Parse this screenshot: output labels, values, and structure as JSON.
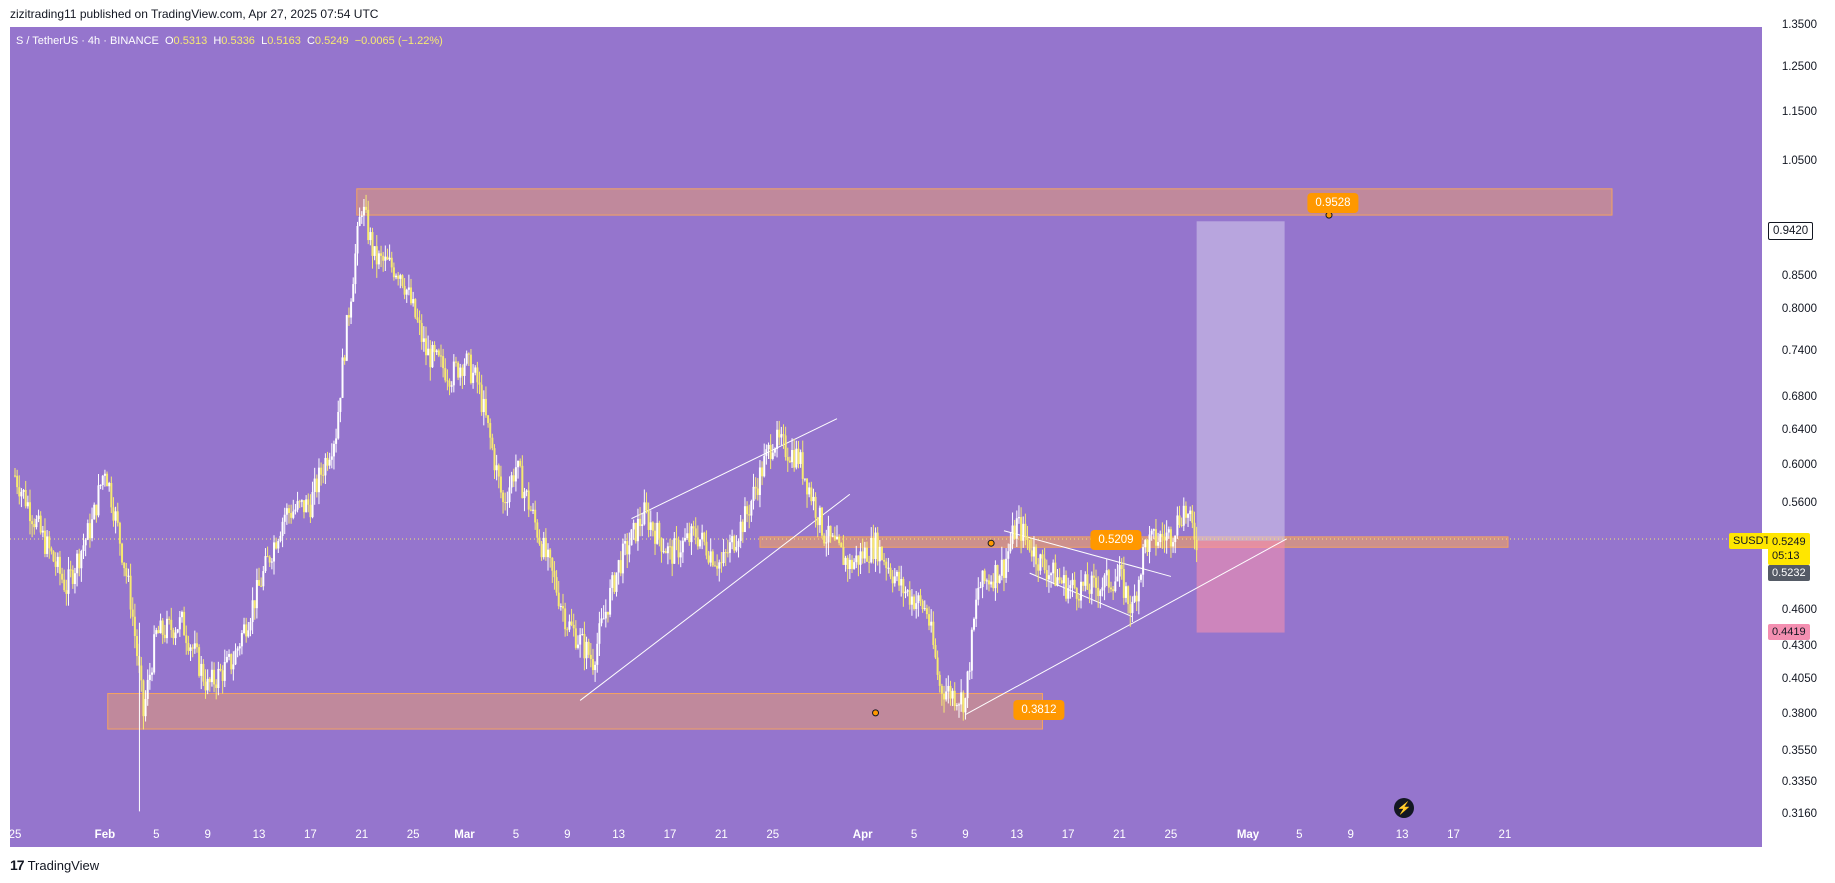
{
  "publisher": "zizitrading11 published on TradingView.com, Apr 27, 2025 07:54 UTC",
  "legend": {
    "symbol": "S / TetherUS · 4h · BINANCE",
    "open_label": "O",
    "open": "0.5313",
    "high_label": "H",
    "high": "0.5336",
    "low_label": "L",
    "low": "0.5163",
    "close_label": "C",
    "close": "0.5249",
    "change": "−0.0065 (−1.22%)"
  },
  "price_badges": {
    "target": "0.9420",
    "ticker": "SUSDT",
    "last": "0.5249",
    "countdown": "05:13",
    "prev": "0.5232",
    "stop": "0.4419"
  },
  "level_bubbles": {
    "resistance": "0.9528",
    "pivot": "0.5209",
    "support": "0.3812"
  },
  "footer": {
    "brand": "TradingView",
    "logo": "17"
  },
  "colors": {
    "background": "#9575cd",
    "candle_up": "#ffffff",
    "candle_down": "#f7ea70",
    "zone_fill": "#f4a261",
    "bubble": "#ff9800",
    "target_box": "#d1c4e9",
    "stop_box": "#f48fb1"
  },
  "chart_data": {
    "type": "candlestick",
    "title": "S / TetherUS · 4h · BINANCE",
    "xlabel": "",
    "ylabel": "",
    "y_scale": "log",
    "ylim": [
      0.305,
      1.38
    ],
    "x_ticks": [
      "25",
      "Feb",
      "5",
      "9",
      "13",
      "17",
      "21",
      "25",
      "Mar",
      "5",
      "9",
      "13",
      "17",
      "21",
      "25",
      "Apr",
      "5",
      "9",
      "13",
      "17",
      "21",
      "25",
      "May",
      "5",
      "9",
      "13",
      "17",
      "21"
    ],
    "y_ticks": [
      "1.3500",
      "1.2500",
      "1.1500",
      "1.0500",
      "0.8500",
      "0.8000",
      "0.7400",
      "0.6800",
      "0.6400",
      "0.6000",
      "0.5600",
      "0.4600",
      "0.4300",
      "0.4050",
      "0.3800",
      "0.3550",
      "0.3350",
      "0.3160"
    ],
    "price_path": [
      [
        "2025-01-25",
        0.59
      ],
      [
        "2025-01-27",
        0.53
      ],
      [
        "2025-01-29",
        0.48
      ],
      [
        "2025-01-31",
        0.54
      ],
      [
        "2025-02-01",
        0.6
      ],
      [
        "2025-02-03",
        0.47
      ],
      [
        "2025-02-04",
        0.38
      ],
      [
        "2025-02-05",
        0.44
      ],
      [
        "2025-02-07",
        0.45
      ],
      [
        "2025-02-09",
        0.4
      ],
      [
        "2025-02-11",
        0.42
      ],
      [
        "2025-02-13",
        0.48
      ],
      [
        "2025-02-15",
        0.55
      ],
      [
        "2025-02-17",
        0.56
      ],
      [
        "2025-02-19",
        0.64
      ],
      [
        "2025-02-20",
        0.8
      ],
      [
        "2025-02-21",
        0.97
      ],
      [
        "2025-02-22",
        0.88
      ],
      [
        "2025-02-24",
        0.86
      ],
      [
        "2025-02-26",
        0.74
      ],
      [
        "2025-02-28",
        0.71
      ],
      [
        "2025-03-01",
        0.73
      ],
      [
        "2025-03-02",
        0.7
      ],
      [
        "2025-03-04",
        0.56
      ],
      [
        "2025-03-05",
        0.6
      ],
      [
        "2025-03-07",
        0.52
      ],
      [
        "2025-03-09",
        0.45
      ],
      [
        "2025-03-11",
        0.42
      ],
      [
        "2025-03-13",
        0.5
      ],
      [
        "2025-03-15",
        0.55
      ],
      [
        "2025-03-17",
        0.51
      ],
      [
        "2025-03-19",
        0.53
      ],
      [
        "2025-03-21",
        0.5
      ],
      [
        "2025-03-23",
        0.55
      ],
      [
        "2025-03-25",
        0.63
      ],
      [
        "2025-03-27",
        0.61
      ],
      [
        "2025-03-29",
        0.53
      ],
      [
        "2025-03-31",
        0.5
      ],
      [
        "2025-04-02",
        0.52
      ],
      [
        "2025-04-04",
        0.48
      ],
      [
        "2025-04-06",
        0.46
      ],
      [
        "2025-04-07",
        0.4
      ],
      [
        "2025-04-09",
        0.39
      ],
      [
        "2025-04-10",
        0.48
      ],
      [
        "2025-04-12",
        0.5
      ],
      [
        "2025-04-13",
        0.54
      ],
      [
        "2025-04-15",
        0.5
      ],
      [
        "2025-04-17",
        0.48
      ],
      [
        "2025-04-19",
        0.48
      ],
      [
        "2025-04-21",
        0.49
      ],
      [
        "2025-04-22",
        0.46
      ],
      [
        "2025-04-23",
        0.52
      ],
      [
        "2025-04-25",
        0.53
      ],
      [
        "2025-04-26",
        0.555
      ],
      [
        "2025-04-27",
        0.5249
      ]
    ],
    "levels": {
      "resistance_zone": [
        0.9528,
        1.0
      ],
      "pivot": 0.5209,
      "support_zone": [
        0.37,
        0.395
      ]
    },
    "long_position": {
      "entry": 0.5232,
      "target": 0.942,
      "stop": 0.4419
    },
    "annotations": [
      "0.9528",
      "0.5209",
      "0.3812"
    ],
    "trendlines": [
      {
        "name": "rising-channel-upper",
        "from": [
          "2025-03-14",
          0.545
        ],
        "to": [
          "2025-03-30",
          0.655
        ]
      },
      {
        "name": "rising-channel-lower",
        "from": [
          "2025-03-10",
          0.39
        ],
        "to": [
          "2025-03-31",
          0.57
        ]
      },
      {
        "name": "falling-wedge-upper",
        "from": [
          "2025-04-12",
          0.533
        ],
        "to": [
          "2025-04-25",
          0.49
        ]
      },
      {
        "name": "falling-wedge-lower",
        "from": [
          "2025-04-14",
          0.493
        ],
        "to": [
          "2025-04-22",
          0.455
        ]
      },
      {
        "name": "support-trendline",
        "from": [
          "2025-04-09",
          0.38
        ],
        "to": [
          "2025-05-04",
          0.525
        ]
      }
    ],
    "grid": false,
    "legend_position": "top-left"
  }
}
